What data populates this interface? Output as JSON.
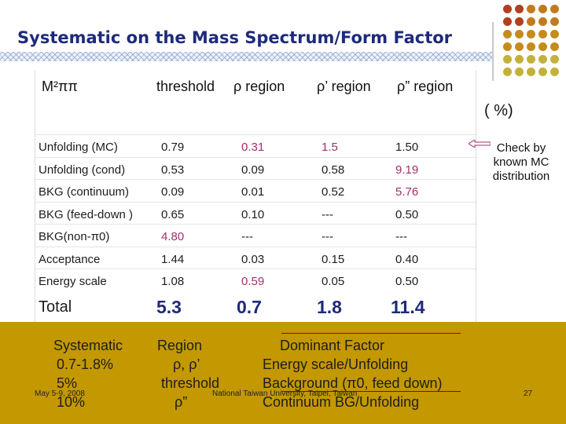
{
  "title": "Systematic on the Mass Spectrum/Form Factor",
  "header": {
    "m2_label": "M²ππ",
    "threshold": "threshold",
    "rho": "ρ region",
    "rho_prime": "ρ’ region",
    "rho_dprime": "ρ” region",
    "unit": "( %)"
  },
  "rows": [
    {
      "label": "Unfolding (MC)",
      "values": [
        "0.79",
        "0.31",
        "1.5",
        "1.50"
      ]
    },
    {
      "label": "Unfolding (cond)",
      "values": [
        "0.53",
        "0.09",
        "0.58",
        "9.19"
      ]
    },
    {
      "label": "BKG (continuum)",
      "values": [
        "0.09",
        "0.01",
        "0.52",
        "5.76"
      ]
    },
    {
      "label": "BKG (feed-down )",
      "values": [
        "0.65",
        "0.10",
        "---",
        "0.50"
      ]
    },
    {
      "label": "BKG(non-π0)",
      "values": [
        "4.80",
        "---",
        "---",
        "---"
      ]
    },
    {
      "label": "Acceptance",
      "values": [
        "1.44",
        "0.03",
        "0.15",
        "0.40"
      ]
    },
    {
      "label": "Energy scale",
      "values": [
        "1.08",
        "0.59",
        "0.05",
        "0.50"
      ]
    }
  ],
  "total": {
    "label": "Total",
    "values": [
      "5.3",
      "0.7",
      "1.8",
      "11.4"
    ]
  },
  "note": "Check by known MC distribution",
  "summary": {
    "col1_head": "Systematic",
    "col1": [
      "0.7-1.8%",
      "5%",
      "10%"
    ],
    "col2_head": "Region",
    "col2": [
      "ρ, ρ’",
      "threshold",
      "ρ”"
    ],
    "col3_head": "Dominant Factor",
    "col3": [
      "Energy scale/Unfolding",
      "Background (π0, feed down)",
      "Continuum BG/Unfolding"
    ]
  },
  "footer": {
    "date": "May 5-9, 2008",
    "venue": "National Taiwan University, Taipei, Taiwan",
    "page": "27"
  },
  "colors": {
    "title": "#1e2a7a",
    "highlight": "#a0306d",
    "band": "#c39800"
  }
}
